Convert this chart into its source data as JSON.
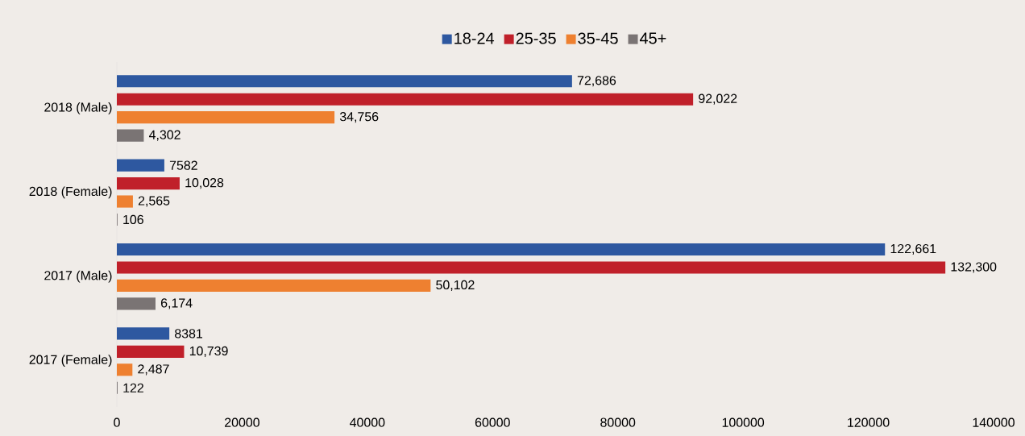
{
  "chart_data": {
    "type": "bar",
    "orientation": "horizontal",
    "categories": [
      "2018 (Male)",
      "2018 (Female)",
      "2017 (Male)",
      "2017 (Female)"
    ],
    "series": [
      {
        "name": "18-24",
        "color": "#2e58a0",
        "values": [
          72686,
          7582,
          122661,
          8381
        ],
        "value_labels": [
          "72,686",
          "7582",
          "122,661",
          "8381"
        ]
      },
      {
        "name": "25-35",
        "color": "#c0202a",
        "values": [
          92022,
          10028,
          132300,
          10739
        ],
        "value_labels": [
          "92,022",
          "10,028",
          "132,300",
          "10,739"
        ]
      },
      {
        "name": "35-45",
        "color": "#ee8030",
        "values": [
          34756,
          2565,
          50102,
          2487
        ],
        "value_labels": [
          "34,756",
          "2,565",
          "50,102",
          "2,487"
        ]
      },
      {
        "name": "45+",
        "color": "#7a7474",
        "values": [
          4302,
          106,
          6174,
          122
        ],
        "value_labels": [
          "4,302",
          "106",
          "6,174",
          "122"
        ]
      }
    ],
    "xlim": [
      0,
      140000
    ],
    "xticks": [
      0,
      20000,
      40000,
      60000,
      80000,
      100000,
      120000,
      140000
    ],
    "grid": false,
    "legend": "top"
  }
}
